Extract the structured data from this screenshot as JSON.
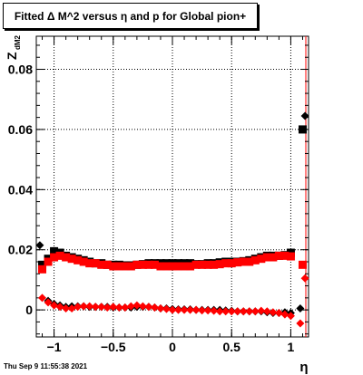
{
  "title": "Fitted Δ M^2 versus η and p for Global pion+",
  "timestamp": "Thu Sep  9 11:55:38 2021",
  "chart_data": {
    "type": "scatter",
    "xlabel": "η",
    "ylabel": "Z",
    "ylabel_sub": "dM2",
    "xlim": [
      -1.15,
      1.15
    ],
    "ylim": [
      -0.009,
      0.091
    ],
    "xticks": [
      -1,
      -0.5,
      0,
      0.5,
      1
    ],
    "xtick_labels": [
      "−1",
      "−0.5",
      "0",
      "0.5",
      "1"
    ],
    "yticks": [
      0,
      0.02,
      0.04,
      0.06,
      0.08
    ],
    "ytick_labels": [
      "0",
      "0.02",
      "0.04",
      "0.06",
      "0.08"
    ],
    "grid": true,
    "series": [
      {
        "color": "#000000",
        "marker": "square",
        "x": [
          -1.1,
          -1.05,
          -1.0,
          -0.95,
          -0.9,
          -0.85,
          -0.8,
          -0.75,
          -0.7,
          -0.65,
          -0.6,
          -0.55,
          -0.5,
          -0.45,
          -0.4,
          -0.35,
          -0.3,
          -0.25,
          -0.2,
          -0.15,
          -0.1,
          -0.05,
          0.0,
          0.05,
          0.1,
          0.15,
          0.2,
          0.25,
          0.3,
          0.35,
          0.4,
          0.45,
          0.5,
          0.55,
          0.6,
          0.65,
          0.7,
          0.75,
          0.8,
          0.85,
          0.9,
          0.95,
          1.0,
          1.1
        ],
        "y": [
          0.015,
          0.017,
          0.0195,
          0.019,
          0.018,
          0.0175,
          0.017,
          0.0165,
          0.016,
          0.0155,
          0.0155,
          0.015,
          0.015,
          0.015,
          0.0148,
          0.0148,
          0.015,
          0.0152,
          0.0155,
          0.0155,
          0.0155,
          0.0155,
          0.0155,
          0.0155,
          0.0155,
          0.0155,
          0.0152,
          0.0152,
          0.0155,
          0.0155,
          0.0158,
          0.016,
          0.016,
          0.016,
          0.0162,
          0.0165,
          0.017,
          0.0175,
          0.018,
          0.018,
          0.018,
          0.0182,
          0.019,
          0.06
        ]
      },
      {
        "color": "#ff0000",
        "marker": "square",
        "x": [
          -1.1,
          -1.05,
          -1.0,
          -0.95,
          -0.9,
          -0.85,
          -0.8,
          -0.75,
          -0.7,
          -0.65,
          -0.6,
          -0.55,
          -0.5,
          -0.45,
          -0.4,
          -0.35,
          -0.3,
          -0.25,
          -0.2,
          -0.15,
          -0.1,
          -0.05,
          0.0,
          0.05,
          0.1,
          0.15,
          0.2,
          0.25,
          0.3,
          0.35,
          0.4,
          0.45,
          0.5,
          0.55,
          0.6,
          0.65,
          0.7,
          0.75,
          0.8,
          0.85,
          0.9,
          0.95,
          1.0,
          1.1
        ],
        "y": [
          0.0135,
          0.016,
          0.0175,
          0.018,
          0.0175,
          0.017,
          0.0165,
          0.016,
          0.0155,
          0.0155,
          0.015,
          0.015,
          0.0145,
          0.0145,
          0.0145,
          0.0145,
          0.015,
          0.015,
          0.015,
          0.015,
          0.0145,
          0.0145,
          0.0145,
          0.0145,
          0.0145,
          0.0145,
          0.015,
          0.015,
          0.015,
          0.015,
          0.0152,
          0.0155,
          0.0155,
          0.0158,
          0.016,
          0.016,
          0.0165,
          0.017,
          0.0175,
          0.0175,
          0.018,
          0.018,
          0.0178,
          0.015
        ]
      },
      {
        "color": "#000000",
        "marker": "diamond",
        "x": [
          -1.12,
          -1.05,
          -1.0,
          -0.95,
          -0.9,
          -0.85,
          -0.8,
          -0.75,
          -0.7,
          -0.65,
          -0.6,
          -0.55,
          -0.5,
          -0.45,
          -0.4,
          -0.35,
          -0.3,
          -0.25,
          -0.2,
          -0.15,
          -0.1,
          -0.05,
          0.0,
          0.05,
          0.1,
          0.15,
          0.2,
          0.25,
          0.3,
          0.35,
          0.4,
          0.45,
          0.5,
          0.55,
          0.6,
          0.65,
          0.7,
          0.75,
          0.8,
          0.85,
          0.9,
          0.95,
          1.0,
          1.08,
          1.12
        ],
        "y": [
          0.0215,
          0.003,
          0.002,
          0.0015,
          0.001,
          0.0012,
          0.0012,
          0.0012,
          0.001,
          0.001,
          0.001,
          0.001,
          0.0008,
          0.0008,
          0.0008,
          0.0008,
          0.001,
          0.001,
          0.001,
          0.0008,
          0.0005,
          0.0005,
          0.0003,
          0.0002,
          0.0002,
          0.0002,
          0.0,
          0.0,
          0.0,
          0.0,
          0.0,
          -0.0002,
          -0.0003,
          -0.0005,
          -0.0005,
          -0.0005,
          -0.0005,
          -0.0005,
          -0.0008,
          -0.001,
          -0.001,
          -0.0008,
          -0.001,
          0.0005,
          0.0645
        ]
      },
      {
        "color": "#ff0000",
        "marker": "diamond",
        "x": [
          -1.1,
          -1.05,
          -1.0,
          -0.95,
          -0.9,
          -0.85,
          -0.8,
          -0.75,
          -0.7,
          -0.65,
          -0.6,
          -0.55,
          -0.5,
          -0.45,
          -0.4,
          -0.35,
          -0.3,
          -0.25,
          -0.2,
          -0.15,
          -0.1,
          -0.05,
          0.0,
          0.05,
          0.1,
          0.15,
          0.2,
          0.25,
          0.3,
          0.35,
          0.4,
          0.45,
          0.5,
          0.55,
          0.6,
          0.65,
          0.7,
          0.75,
          0.8,
          0.85,
          0.9,
          0.95,
          1.0,
          1.08,
          1.12
        ],
        "y": [
          0.004,
          0.0025,
          0.0015,
          0.001,
          0.0005,
          0.0005,
          0.001,
          0.0012,
          0.0012,
          0.001,
          0.001,
          0.0008,
          0.001,
          0.0008,
          0.0008,
          0.0012,
          0.0015,
          0.0012,
          0.001,
          0.0008,
          0.0005,
          0.0003,
          0.0,
          0.0,
          0.0,
          0.0,
          0.0,
          -0.0002,
          -0.0002,
          -0.0003,
          -0.0005,
          -0.0005,
          -0.0005,
          -0.0005,
          -0.0005,
          -0.0005,
          -0.0005,
          -0.0003,
          -0.0005,
          -0.0008,
          -0.001,
          -0.0015,
          -0.002,
          -0.0045,
          0.0105
        ]
      }
    ]
  }
}
